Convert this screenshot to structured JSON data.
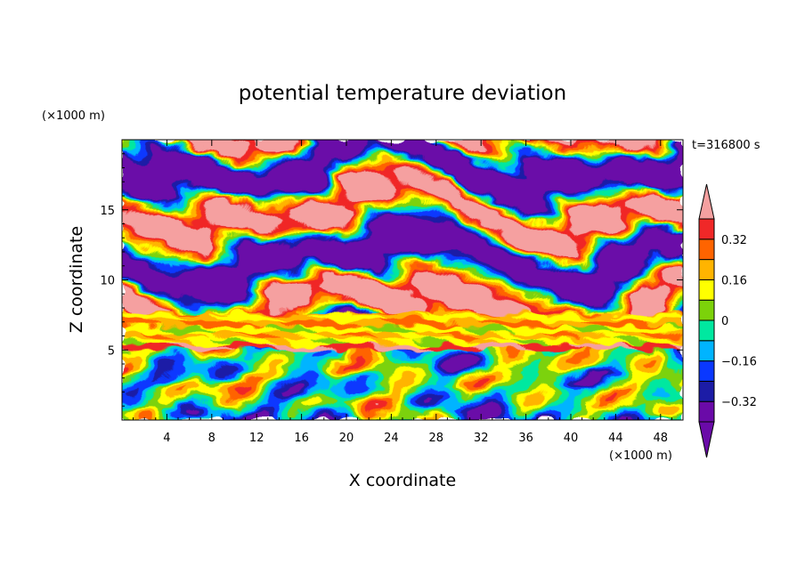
{
  "chart_data": {
    "type": "heatmap",
    "title": "potential temperature deviation",
    "xlabel": "X coordinate",
    "ylabel": "Z coordinate",
    "x_unit": "(×1000 m)",
    "y_unit": "(×1000 m)",
    "time_label": "t=316800 s",
    "xlim": [
      0,
      50
    ],
    "ylim": [
      0,
      20
    ],
    "x_ticks": [
      4,
      8,
      12,
      16,
      20,
      24,
      28,
      32,
      36,
      40,
      44,
      48
    ],
    "y_ticks": [
      5,
      10,
      15
    ],
    "colorbar": {
      "levels": [
        -0.4,
        -0.32,
        -0.24,
        -0.16,
        -0.08,
        0,
        0.08,
        0.16,
        0.24,
        0.32,
        0.4
      ],
      "tick_labels": [
        "0.32",
        "0.16",
        "0",
        "−0.16",
        "−0.32"
      ],
      "tick_values": [
        0.32,
        0.16,
        0,
        -0.16,
        -0.32
      ],
      "colors": [
        "#6a0aa8",
        "#1c1ca6",
        "#0a38ff",
        "#00b4ff",
        "#00e8a0",
        "#7cd20a",
        "#ffff00",
        "#ffb400",
        "#ff6400",
        "#f02828",
        "#f5a0a0"
      ],
      "extend": "both"
    },
    "layers": [
      {
        "z_range": [
          0,
          5
        ],
        "description": "turbulent mixed field"
      },
      {
        "z_range": [
          5,
          7.5
        ],
        "values_range": [
          0.08,
          0.4
        ]
      },
      {
        "z_range": [
          7.5,
          20
        ],
        "description": "alternating bands of -0.4 and 0.4"
      }
    ]
  }
}
